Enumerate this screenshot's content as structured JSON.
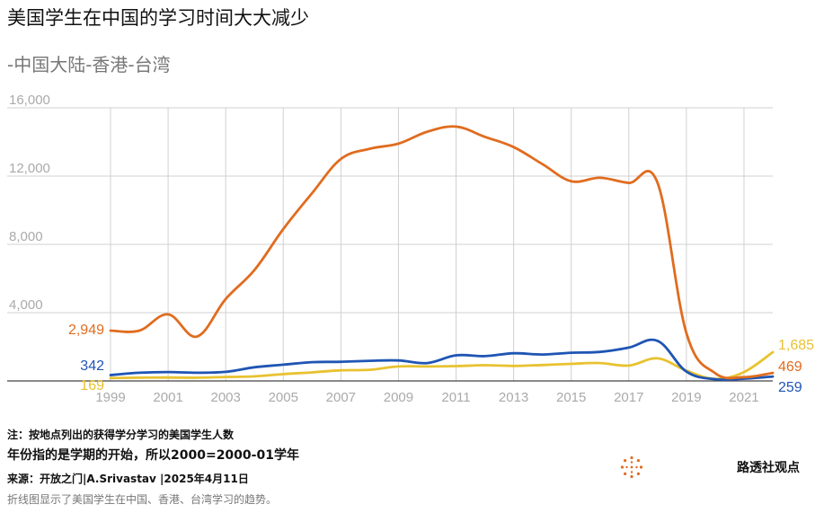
{
  "title": "美国学生在中国的学习时间大大减少",
  "subtitle": "-中国大陆-香港-台湾",
  "notes": {
    "note1": "注：按地点列出的获得学分学习的美国学生人数",
    "note2": "年份指的是学期的开始，所以2000=2000-01学年",
    "source": "来源：开放之门|A.Srivastav |2025年4月11日",
    "caption": "折线图显示了美国学生在中国、香港、台湾学习的趋势。"
  },
  "brand": "路透社观点",
  "colors": {
    "mainland": "#e06c1f",
    "hongkong": "#1f55b4",
    "taiwan": "#e8c230",
    "grid": "#d0d0d0",
    "axis_text": "#aaaaaa"
  },
  "chart_data": {
    "type": "line",
    "x_ticks": [
      "1999",
      "2001",
      "2003",
      "2005",
      "2007",
      "2009",
      "2011",
      "2013",
      "2015",
      "2017",
      "2019",
      "2021"
    ],
    "y_ticks": [
      "16,000",
      "12,000",
      "8,000",
      "4,000"
    ],
    "xlim": [
      1999,
      2022
    ],
    "ylim": [
      0,
      16000
    ],
    "grid": true,
    "legend": "none",
    "series": [
      {
        "key": "mainland",
        "start_label": "2,949",
        "end_label": "469",
        "x": [
          1999,
          2000,
          2001,
          2002,
          2003,
          2004,
          2005,
          2006,
          2007,
          2008,
          2009,
          2010,
          2011,
          2012,
          2013,
          2014,
          2015,
          2016,
          2017,
          2018,
          2019,
          2020,
          2021,
          2022
        ],
        "values": [
          2949,
          2949,
          3900,
          2600,
          4800,
          6500,
          8900,
          11000,
          13000,
          13600,
          13900,
          14600,
          14900,
          14300,
          13700,
          12700,
          11700,
          11900,
          11600,
          11600,
          2800,
          450,
          220,
          469
        ]
      },
      {
        "key": "hongkong",
        "start_label": "342",
        "end_label": "259",
        "x": [
          1999,
          2000,
          2001,
          2002,
          2003,
          2004,
          2005,
          2006,
          2007,
          2008,
          2009,
          2010,
          2011,
          2012,
          2013,
          2014,
          2015,
          2016,
          2017,
          2018,
          2019,
          2020,
          2021,
          2022
        ],
        "values": [
          342,
          480,
          520,
          480,
          530,
          800,
          950,
          1100,
          1120,
          1180,
          1200,
          1050,
          1500,
          1450,
          1620,
          1550,
          1650,
          1700,
          1950,
          2350,
          550,
          100,
          130,
          259
        ]
      },
      {
        "key": "taiwan",
        "start_label": "169",
        "end_label": "1,685",
        "x": [
          1999,
          2000,
          2001,
          2002,
          2003,
          2004,
          2005,
          2006,
          2007,
          2008,
          2009,
          2010,
          2011,
          2012,
          2013,
          2014,
          2015,
          2016,
          2017,
          2018,
          2019,
          2020,
          2021,
          2022
        ],
        "values": [
          169,
          190,
          200,
          190,
          230,
          270,
          400,
          500,
          620,
          650,
          850,
          850,
          870,
          920,
          880,
          930,
          1000,
          1050,
          900,
          1320,
          600,
          120,
          520,
          1685
        ]
      }
    ]
  }
}
